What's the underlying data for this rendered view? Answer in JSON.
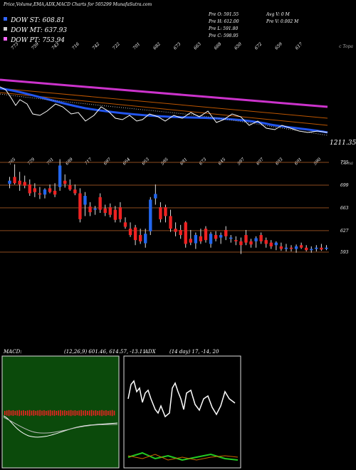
{
  "header": {
    "title": "Price,Volume,EMA,ADX,MACD Charts for 505299 MunafaSutra.com",
    "legend": [
      {
        "label": "DOW ST: 608.81",
        "color": "#3366ff"
      },
      {
        "label": "DOW MT: 637.93",
        "color": "#cccccc"
      },
      {
        "label": "DOW PT: 753.94",
        "color": "#ff66ff"
      }
    ],
    "stats_left": [
      "Pre O: 591.55",
      "Pre H: 612.00",
      "Pre L: 591.80",
      "Pre C: 598.95"
    ],
    "stats_right": [
      "Avg V: 0 M",
      "Pre V: 0.002 M"
    ]
  },
  "ema_panel": {
    "top_labels": [
      "773",
      "759",
      "743",
      "716",
      "742",
      "722",
      "701",
      "682",
      "673",
      "663",
      "668",
      "650",
      "672",
      "659",
      "617"
    ],
    "right_label": "1211.35",
    "corner_tag": "c Topa"
  },
  "price_panel": {
    "top_labels": [
      "765",
      "729",
      "701",
      "689",
      "717",
      "697",
      "664",
      "663",
      "595",
      "681",
      "673",
      "645",
      "597",
      "607",
      "603",
      "601",
      "590"
    ],
    "corner_tag": "Cama",
    "levels": [
      "735",
      "699",
      "663",
      "627",
      "593"
    ]
  },
  "indicators": {
    "macd_label": "MACD:",
    "macd_values": "(12,26,9) 601.46, 614.57, -13.11",
    "adx_label": "ADX",
    "adx_values": "(14 day) 17, -14, 20"
  },
  "colors": {
    "ema_fast": "#2255ee",
    "ema_long": "#cc33cc",
    "ema_mid": "#bb5500",
    "macd_bg": "#0b4a0b",
    "bull": "#2266ee",
    "bear": "#ee2222",
    "level": "#8b4a1e"
  },
  "chart_data": {
    "type": "candlestick",
    "price_levels": [
      735,
      699,
      663,
      627,
      593
    ],
    "candles": [
      {
        "o": 701,
        "h": 712,
        "l": 694,
        "c": 706
      },
      {
        "o": 712,
        "h": 732,
        "l": 700,
        "c": 702
      },
      {
        "o": 706,
        "h": 720,
        "l": 690,
        "c": 700
      },
      {
        "o": 704,
        "h": 714,
        "l": 694,
        "c": 698
      },
      {
        "o": 700,
        "h": 708,
        "l": 682,
        "c": 686
      },
      {
        "o": 694,
        "h": 702,
        "l": 680,
        "c": 688
      },
      {
        "o": 686,
        "h": 696,
        "l": 677,
        "c": 684
      },
      {
        "o": 684,
        "h": 694,
        "l": 678,
        "c": 692
      },
      {
        "o": 694,
        "h": 700,
        "l": 686,
        "c": 688
      },
      {
        "o": 690,
        "h": 702,
        "l": 680,
        "c": 684
      },
      {
        "o": 696,
        "h": 740,
        "l": 690,
        "c": 730
      },
      {
        "o": 706,
        "h": 716,
        "l": 695,
        "c": 701
      },
      {
        "o": 699,
        "h": 708,
        "l": 690,
        "c": 692
      },
      {
        "o": 692,
        "h": 700,
        "l": 683,
        "c": 686
      },
      {
        "o": 686,
        "h": 694,
        "l": 640,
        "c": 645
      },
      {
        "o": 668,
        "h": 688,
        "l": 650,
        "c": 682
      },
      {
        "o": 665,
        "h": 672,
        "l": 650,
        "c": 656
      },
      {
        "o": 660,
        "h": 666,
        "l": 652,
        "c": 662
      },
      {
        "o": 680,
        "h": 686,
        "l": 655,
        "c": 660
      },
      {
        "o": 662,
        "h": 668,
        "l": 650,
        "c": 655
      },
      {
        "o": 664,
        "h": 670,
        "l": 648,
        "c": 652
      },
      {
        "o": 660,
        "h": 666,
        "l": 640,
        "c": 644
      },
      {
        "o": 664,
        "h": 672,
        "l": 640,
        "c": 645
      },
      {
        "o": 640,
        "h": 648,
        "l": 630,
        "c": 633
      },
      {
        "o": 630,
        "h": 640,
        "l": 617,
        "c": 620
      },
      {
        "o": 632,
        "h": 636,
        "l": 604,
        "c": 612
      },
      {
        "o": 620,
        "h": 630,
        "l": 606,
        "c": 610
      },
      {
        "o": 607,
        "h": 630,
        "l": 600,
        "c": 622
      },
      {
        "o": 626,
        "h": 680,
        "l": 620,
        "c": 676
      },
      {
        "o": 678,
        "h": 700,
        "l": 668,
        "c": 685
      },
      {
        "o": 664,
        "h": 672,
        "l": 640,
        "c": 645
      },
      {
        "o": 664,
        "h": 668,
        "l": 640,
        "c": 650
      },
      {
        "o": 650,
        "h": 660,
        "l": 625,
        "c": 630
      },
      {
        "o": 630,
        "h": 640,
        "l": 618,
        "c": 625
      },
      {
        "o": 628,
        "h": 636,
        "l": 614,
        "c": 620
      },
      {
        "o": 640,
        "h": 642,
        "l": 600,
        "c": 606
      },
      {
        "o": 614,
        "h": 628,
        "l": 604,
        "c": 608
      },
      {
        "o": 607,
        "h": 624,
        "l": 598,
        "c": 620
      },
      {
        "o": 618,
        "h": 630,
        "l": 606,
        "c": 610
      },
      {
        "o": 630,
        "h": 634,
        "l": 608,
        "c": 612
      },
      {
        "o": 606,
        "h": 625,
        "l": 600,
        "c": 622
      },
      {
        "o": 620,
        "h": 626,
        "l": 610,
        "c": 614
      },
      {
        "o": 616,
        "h": 624,
        "l": 606,
        "c": 620
      },
      {
        "o": 628,
        "h": 634,
        "l": 612,
        "c": 618
      },
      {
        "o": 614,
        "h": 620,
        "l": 608,
        "c": 616
      },
      {
        "o": 612,
        "h": 618,
        "l": 604,
        "c": 610
      },
      {
        "o": 610,
        "h": 616,
        "l": 590,
        "c": 604
      },
      {
        "o": 620,
        "h": 628,
        "l": 604,
        "c": 608
      },
      {
        "o": 610,
        "h": 614,
        "l": 600,
        "c": 605
      },
      {
        "o": 610,
        "h": 618,
        "l": 600,
        "c": 615
      },
      {
        "o": 620,
        "h": 624,
        "l": 606,
        "c": 610
      },
      {
        "o": 612,
        "h": 616,
        "l": 600,
        "c": 606
      },
      {
        "o": 608,
        "h": 612,
        "l": 598,
        "c": 602
      },
      {
        "o": 604,
        "h": 610,
        "l": 596,
        "c": 608
      },
      {
        "o": 602,
        "h": 608,
        "l": 595,
        "c": 598
      },
      {
        "o": 598,
        "h": 606,
        "l": 594,
        "c": 600
      },
      {
        "o": 600,
        "h": 604,
        "l": 594,
        "c": 598
      },
      {
        "o": 598,
        "h": 605,
        "l": 592,
        "c": 602
      },
      {
        "o": 604,
        "h": 608,
        "l": 598,
        "c": 600
      },
      {
        "o": 600,
        "h": 604,
        "l": 594,
        "c": 596
      },
      {
        "o": 596,
        "h": 602,
        "l": 592,
        "c": 598
      },
      {
        "o": 598,
        "h": 604,
        "l": 594,
        "c": 600
      },
      {
        "o": 600,
        "h": 606,
        "l": 595,
        "c": 597
      },
      {
        "o": 598,
        "h": 604,
        "l": 596,
        "c": 600
      }
    ]
  }
}
